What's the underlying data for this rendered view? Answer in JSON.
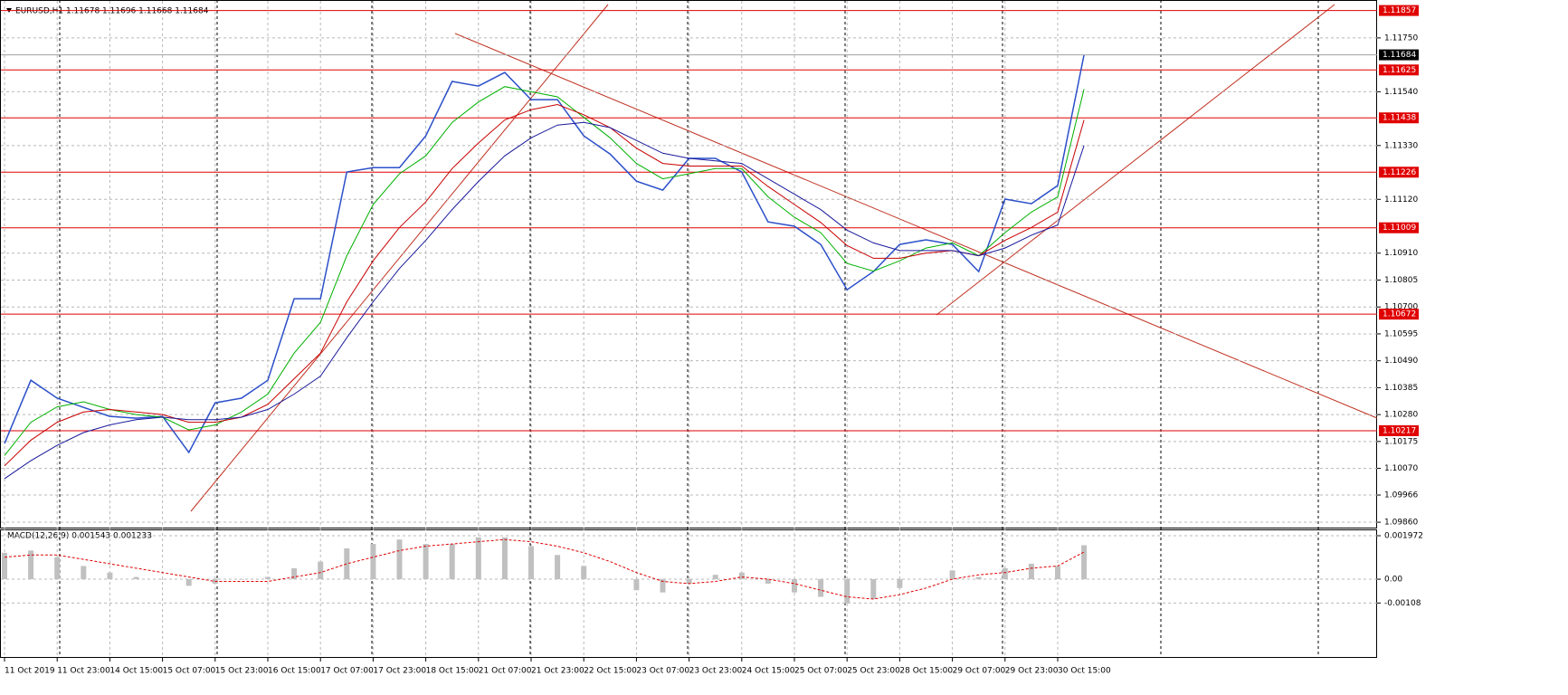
{
  "chart_data": [
    {
      "type": "line",
      "title": "EURUSD,H1  1.11678 1.11696 1.11668 1.11684",
      "categories": [
        "11 Oct 2019",
        null,
        "11 Oct 23:00",
        null,
        "14 Oct 15:00",
        null,
        "15 Oct 07:00",
        null,
        "15 Oct 23:00",
        null,
        "16 Oct 15:00",
        null,
        "17 Oct 07:00",
        null,
        "17 Oct 23:00",
        null,
        "18 Oct 15:00",
        null,
        "21 Oct 07:00",
        null,
        "21 Oct 23:00",
        null,
        "22 Oct 15:00",
        null,
        "23 Oct 07:00",
        null,
        "23 Oct 23:00",
        null,
        "24 Oct 15:00",
        null,
        "25 Oct 07:00",
        null,
        "25 Oct 23:00",
        null,
        "28 Oct 15:00",
        null,
        "29 Oct 07:00",
        null,
        "29 Oct 23:00",
        null,
        "30 Oct 15:00",
        null
      ],
      "series": [
        {
          "color": "#2b4fc9",
          "values": [
            1.10167,
            1.10414,
            1.10344,
            1.10308,
            1.10273,
            1.10266,
            1.10273,
            1.10132,
            1.10326,
            1.10344,
            1.10414,
            1.10732,
            1.10732,
            1.11227,
            1.11244,
            1.11244,
            1.11368,
            1.1158,
            1.11562,
            1.11615,
            1.11509,
            1.11509,
            1.11368,
            1.11297,
            1.11191,
            1.11156,
            1.1128,
            1.1128,
            1.11227,
            1.11032,
            1.11015,
            1.10944,
            1.10767,
            1.10838,
            1.10944,
            1.10962,
            1.10944,
            1.10838,
            1.11121,
            1.11103,
            1.11174,
            1.11684
          ]
        },
        {
          "color": "#00b000",
          "values": [
            1.1012,
            1.1025,
            1.1031,
            1.1033,
            1.103,
            1.1028,
            1.1027,
            1.1022,
            1.1024,
            1.1029,
            1.1036,
            1.1052,
            1.1064,
            1.109,
            1.111,
            1.1122,
            1.1129,
            1.1142,
            1.115,
            1.1156,
            1.1154,
            1.1152,
            1.1144,
            1.1136,
            1.1126,
            1.112,
            1.1122,
            1.1124,
            1.1124,
            1.1113,
            1.1105,
            1.1099,
            1.1087,
            1.1084,
            1.1088,
            1.1093,
            1.1095,
            1.109,
            1.1099,
            1.1107,
            1.1113,
            1.1155
          ]
        },
        {
          "color": "#c80000",
          "values": [
            1.1008,
            1.1018,
            1.1025,
            1.1029,
            1.103,
            1.1029,
            1.1028,
            1.1025,
            1.1025,
            1.1027,
            1.1032,
            1.1042,
            1.1052,
            1.1072,
            1.1088,
            1.1101,
            1.1111,
            1.1124,
            1.1134,
            1.1143,
            1.1147,
            1.1149,
            1.1145,
            1.114,
            1.1132,
            1.1126,
            1.1125,
            1.1125,
            1.1125,
            1.1117,
            1.111,
            1.1103,
            1.1094,
            1.1089,
            1.1089,
            1.1091,
            1.1092,
            1.109,
            1.1096,
            1.1101,
            1.1107,
            1.1143
          ]
        },
        {
          "color": "#1a1a9c",
          "values": [
            1.1003,
            1.101,
            1.1016,
            1.1021,
            1.1024,
            1.1026,
            1.1027,
            1.1026,
            1.1026,
            1.1027,
            1.103,
            1.1036,
            1.1043,
            1.1058,
            1.1072,
            1.1085,
            1.1096,
            1.1108,
            1.1119,
            1.1129,
            1.1136,
            1.1141,
            1.1142,
            1.114,
            1.1135,
            1.113,
            1.1128,
            1.1127,
            1.1126,
            1.112,
            1.1114,
            1.1108,
            1.11,
            1.1095,
            1.1092,
            1.1092,
            1.1092,
            1.109,
            1.1093,
            1.1098,
            1.1102,
            1.1133
          ]
        }
      ],
      "ylim": [
        1.09839,
        1.11898
      ],
      "yticks": [
        {
          "value": 1.1175,
          "label": "1.11750"
        },
        {
          "value": 1.1154,
          "label": "1.11540"
        },
        {
          "value": 1.1133,
          "label": "1.11330"
        },
        {
          "value": 1.1112,
          "label": "1.11120"
        },
        {
          "value": 1.1091,
          "label": "1.10910"
        },
        {
          "value": 1.10805,
          "label": "1.10805"
        },
        {
          "value": 1.107,
          "label": "1.10700"
        },
        {
          "value": 1.10595,
          "label": "1.10595"
        },
        {
          "value": 1.1049,
          "label": "1.10490"
        },
        {
          "value": 1.10385,
          "label": "1.10385"
        },
        {
          "value": 1.1028,
          "label": "1.10280"
        },
        {
          "value": 1.10175,
          "label": "1.10175"
        },
        {
          "value": 1.1007,
          "label": "1.10070"
        },
        {
          "value": 1.09966,
          "label": "1.09966"
        },
        {
          "value": 1.0986,
          "label": "1.09860"
        }
      ],
      "levels": [
        1.11857,
        1.11625,
        1.11438,
        1.11226,
        1.11009,
        1.10672,
        1.10217
      ],
      "level_color": "#e00000",
      "current_price": 1.11684,
      "grid": true
    },
    {
      "type": "bar",
      "title": "MACD(12,26,9) 0.001543 0.001233",
      "series": [
        {
          "color": "#c0c0c0",
          "values": [
            0.0012,
            0.0013,
            0.001,
            0.0006,
            0.0003,
            0.0001,
            0.0,
            -0.0003,
            -0.0002,
            0.0,
            0.0001,
            0.0005,
            0.0008,
            0.0014,
            0.0016,
            0.0018,
            0.0016,
            0.0016,
            0.0019,
            0.0019,
            0.0015,
            0.0011,
            0.0006,
            0.0,
            -0.0005,
            -0.0006,
            -0.0002,
            0.0002,
            0.0003,
            -0.0002,
            -0.0006,
            -0.0008,
            -0.0011,
            -0.0009,
            -0.0004,
            0.0,
            0.0004,
            0.0001,
            0.0005,
            0.0007,
            0.0006,
            0.001543
          ]
        },
        {
          "color": "#e00000",
          "values": [
            0.001,
            0.0011,
            0.0011,
            0.0009,
            0.0007,
            0.0005,
            0.0003,
            0.0001,
            -0.0001,
            -0.0001,
            -0.0001,
            0.0001,
            0.0003,
            0.0007,
            0.001,
            0.0013,
            0.0015,
            0.0016,
            0.0017,
            0.0018,
            0.0017,
            0.0015,
            0.0012,
            0.0008,
            0.0003,
            -0.0001,
            -0.0002,
            -0.0001,
            0.0001,
            0.0,
            -0.0002,
            -0.0005,
            -0.0008,
            -0.0009,
            -0.0007,
            -0.0004,
            0.0,
            0.0002,
            0.0003,
            0.0005,
            0.0006,
            0.001233
          ]
        }
      ],
      "ylim": [
        -0.00357,
        0.00226
      ],
      "yticks": [
        0.001972,
        {
          "value": 0,
          "label": "0.00"
        },
        -0.00108
      ],
      "grid": true
    }
  ]
}
